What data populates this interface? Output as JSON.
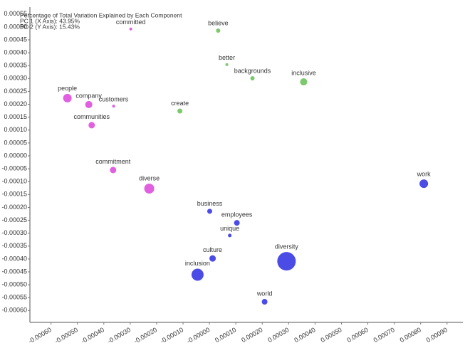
{
  "chart_data": {
    "type": "scatter",
    "annotations": [
      "Percentage of Total Variation Explained by Each Component",
      "PC 1 (X Axis): 43.95%",
      "PC 2 (Y Axis): 15.43%"
    ],
    "xlim": [
      -0.00068,
      0.00096
    ],
    "ylim": [
      -0.000646,
      0.000577
    ],
    "xticks": [
      {
        "value": -0.0006,
        "label": "-0.00060"
      },
      {
        "value": -0.0005,
        "label": "-0.00050"
      },
      {
        "value": -0.0004,
        "label": "-0.00040"
      },
      {
        "value": -0.0003,
        "label": "-0.00030"
      },
      {
        "value": -0.0002,
        "label": "-0.00020"
      },
      {
        "value": -0.0001,
        "label": "-0.00010"
      },
      {
        "value": 0,
        "label": "-0.00000"
      },
      {
        "value": 0.0001,
        "label": "0.00010"
      },
      {
        "value": 0.0002,
        "label": "0.00020"
      },
      {
        "value": 0.0003,
        "label": "0.00030"
      },
      {
        "value": 0.0004,
        "label": "0.00040"
      },
      {
        "value": 0.0005,
        "label": "0.00050"
      },
      {
        "value": 0.0006,
        "label": "0.00060"
      },
      {
        "value": 0.0007,
        "label": "0.00070"
      },
      {
        "value": 0.0008,
        "label": "0.00080"
      },
      {
        "value": 0.0009,
        "label": "0.00090"
      }
    ],
    "yticks": [
      {
        "value": 0.00055,
        "label": "0.00055"
      },
      {
        "value": 0.0005,
        "label": "0.00050"
      },
      {
        "value": 0.00045,
        "label": "0.00045"
      },
      {
        "value": 0.0004,
        "label": "0.00040"
      },
      {
        "value": 0.00035,
        "label": "0.00035"
      },
      {
        "value": 0.0003,
        "label": "0.00030"
      },
      {
        "value": 0.00025,
        "label": "0.00025"
      },
      {
        "value": 0.0002,
        "label": "0.00020"
      },
      {
        "value": 0.00015,
        "label": "0.00015"
      },
      {
        "value": 0.0001,
        "label": "0.00010"
      },
      {
        "value": 5e-05,
        "label": "0.00005"
      },
      {
        "value": 0,
        "label": "0.00000"
      },
      {
        "value": -5e-05,
        "label": "-0.00005"
      },
      {
        "value": -0.0001,
        "label": "-0.00010"
      },
      {
        "value": -0.00015,
        "label": "-0.00015"
      },
      {
        "value": -0.0002,
        "label": "-0.00020"
      },
      {
        "value": -0.00025,
        "label": "-0.00025"
      },
      {
        "value": -0.0003,
        "label": "-0.00030"
      },
      {
        "value": -0.00035,
        "label": "-0.00035"
      },
      {
        "value": -0.0004,
        "label": "-0.00040"
      },
      {
        "value": -0.00045,
        "label": "-0.00045"
      },
      {
        "value": -0.0005,
        "label": "-0.00050"
      },
      {
        "value": -0.00055,
        "label": "-0.00055"
      },
      {
        "value": -0.0006,
        "label": "-0.00060"
      }
    ],
    "points": [
      {
        "label": "committed",
        "x": -0.000298,
        "y": 0.000492,
        "size": 2,
        "color": "#e060e0"
      },
      {
        "label": "believe",
        "x": 3.3e-05,
        "y": 0.000486,
        "size": 3,
        "color": "#7cc86c"
      },
      {
        "label": "better",
        "x": 6.6e-05,
        "y": 0.000354,
        "size": 2,
        "color": "#7cc86c"
      },
      {
        "label": "backgrounds",
        "x": 0.000163,
        "y": 0.000301,
        "size": 3,
        "color": "#7cc86c"
      },
      {
        "label": "inclusive",
        "x": 0.000357,
        "y": 0.000287,
        "size": 5,
        "color": "#7cc86c"
      },
      {
        "label": "people",
        "x": -0.000538,
        "y": 0.000224,
        "size": 6,
        "color": "#e060e0"
      },
      {
        "label": "company",
        "x": -0.000457,
        "y": 0.000199,
        "size": 5,
        "color": "#e060e0"
      },
      {
        "label": "customers",
        "x": -0.000363,
        "y": 0.000193,
        "size": 2,
        "color": "#e060e0"
      },
      {
        "label": "create",
        "x": -0.000112,
        "y": 0.000174,
        "size": 3.5,
        "color": "#7cc86c"
      },
      {
        "label": "communities",
        "x": -0.000446,
        "y": 0.000119,
        "size": 4.5,
        "color": "#e060e0"
      },
      {
        "label": "commitment",
        "x": -0.000365,
        "y": -5.5e-05,
        "size": 4.5,
        "color": "#e060e0"
      },
      {
        "label": "diverse",
        "x": -0.000228,
        "y": -0.000127,
        "size": 7,
        "color": "#e060e0"
      },
      {
        "label": "work",
        "x": 0.000812,
        "y": -0.000108,
        "size": 6,
        "color": "#4b4be6"
      },
      {
        "label": "business",
        "x": 1e-06,
        "y": -0.000215,
        "size": 3.5,
        "color": "#4b4be6"
      },
      {
        "label": "employees",
        "x": 0.000104,
        "y": -0.00026,
        "size": 4,
        "color": "#4b4be6"
      },
      {
        "label": "unique",
        "x": 7.7e-05,
        "y": -0.000309,
        "size": 2.5,
        "color": "#4b4be6"
      },
      {
        "label": "culture",
        "x": 1.2e-05,
        "y": -0.000398,
        "size": 4.5,
        "color": "#4b4be6"
      },
      {
        "label": "diversity",
        "x": 0.000292,
        "y": -0.000409,
        "size": 13,
        "color": "#4b4be6"
      },
      {
        "label": "inclusion",
        "x": -4.5e-05,
        "y": -0.000461,
        "size": 8.5,
        "color": "#4b4be6"
      },
      {
        "label": "world",
        "x": 0.000209,
        "y": -0.000566,
        "size": 4,
        "color": "#4b4be6"
      }
    ]
  }
}
